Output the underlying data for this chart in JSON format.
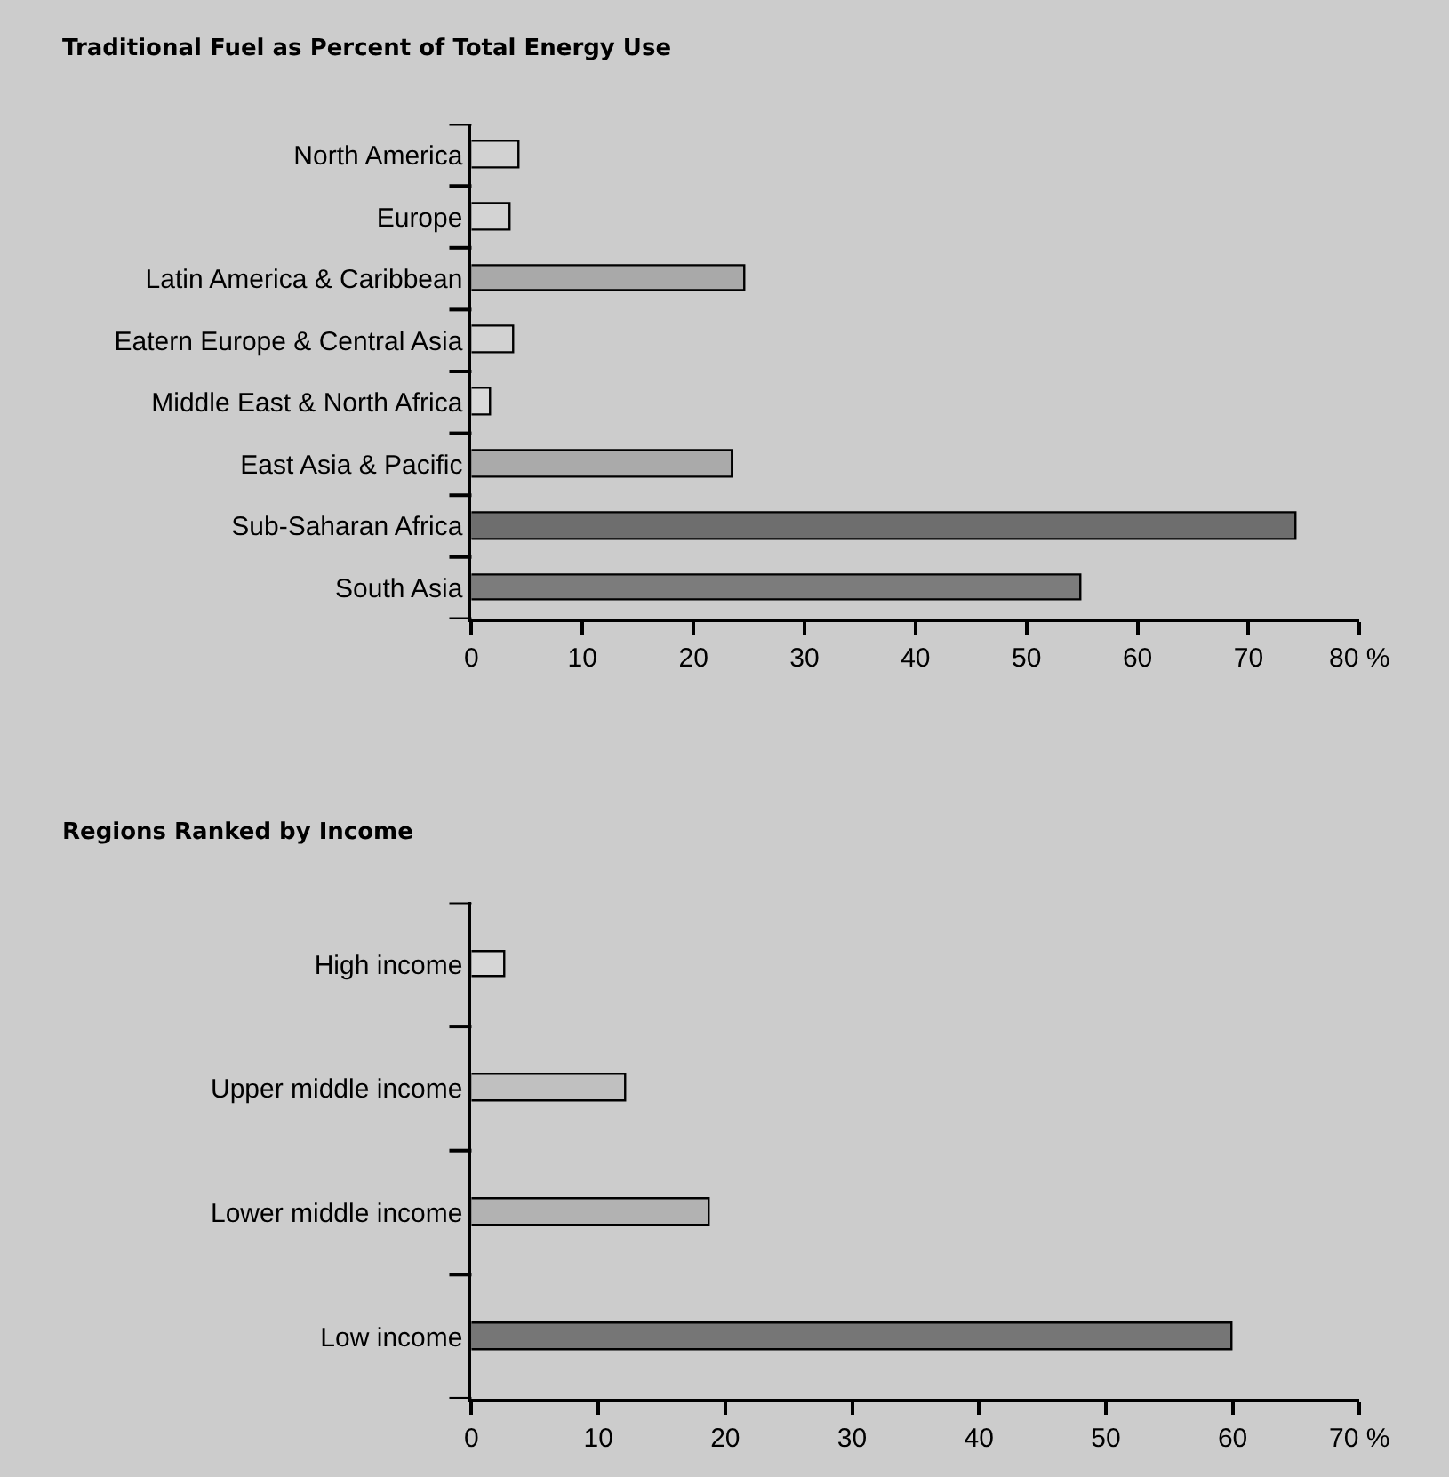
{
  "chart_data": [
    {
      "type": "bar",
      "orientation": "horizontal",
      "title": "Traditional Fuel as Percent of Total Energy Use",
      "categories": [
        "North America",
        "Europe",
        "Latin America & Caribbean",
        "Eatern Europe & Central Asia",
        "Middle East & North Africa",
        "East Asia & Pacific",
        "Sub-Saharan Africa",
        "South Asia"
      ],
      "values": [
        4.3,
        3.6,
        24.6,
        3.9,
        1.7,
        23.5,
        74.3,
        54.9
      ],
      "colors": [
        "#d2d2d2",
        "#d3d3d3",
        "#a9a9a9",
        "#d2d2d2",
        "#dadada",
        "#aaaaaa",
        "#6e6e6e",
        "#7c7c7c"
      ],
      "xlim": [
        0,
        80
      ],
      "xticks": [
        0,
        10,
        20,
        30,
        40,
        50,
        60,
        70,
        {
          "value": 80,
          "label": "80 %"
        }
      ],
      "grid": false
    },
    {
      "type": "bar",
      "orientation": "horizontal",
      "title": "Regions Ranked by Income",
      "categories": [
        "High income",
        "Upper middle income",
        "Lower middle income",
        "Low income"
      ],
      "values": [
        2.7,
        12.2,
        18.8,
        60.0
      ],
      "colors": [
        "#d6d6d6",
        "#c0c0c0",
        "#b2b2b2",
        "#767676"
      ],
      "xlim": [
        0,
        70
      ],
      "xticks": [
        0,
        10,
        20,
        30,
        40,
        50,
        60,
        {
          "value": 70,
          "label": "70 %"
        }
      ],
      "grid": false
    }
  ]
}
